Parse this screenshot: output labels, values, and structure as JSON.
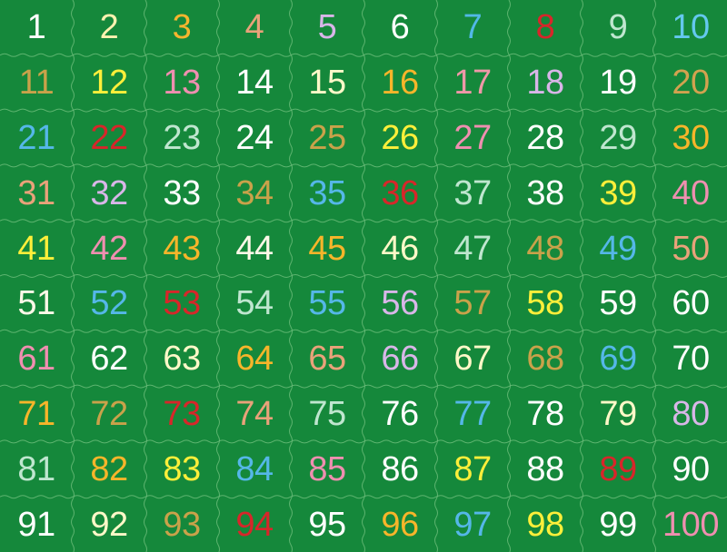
{
  "board": {
    "background": "#15883b",
    "seam_color": "#6fbf7d",
    "cells": [
      {
        "n": "1",
        "color": "#ffffff"
      },
      {
        "n": "2",
        "color": "#fff2b0"
      },
      {
        "n": "3",
        "color": "#f6b52e"
      },
      {
        "n": "4",
        "color": "#e9a27a"
      },
      {
        "n": "5",
        "color": "#d8b6e8"
      },
      {
        "n": "6",
        "color": "#ffffff"
      },
      {
        "n": "7",
        "color": "#52b8e6"
      },
      {
        "n": "8",
        "color": "#d7262a"
      },
      {
        "n": "9",
        "color": "#bfe6cf"
      },
      {
        "n": "10",
        "color": "#64c8ee"
      },
      {
        "n": "11",
        "color": "#c9a24a"
      },
      {
        "n": "12",
        "color": "#ffef3a"
      },
      {
        "n": "13",
        "color": "#ef8fb0"
      },
      {
        "n": "14",
        "color": "#ffffff"
      },
      {
        "n": "15",
        "color": "#fff8c8"
      },
      {
        "n": "16",
        "color": "#f7b52a"
      },
      {
        "n": "17",
        "color": "#ef98a8"
      },
      {
        "n": "18",
        "color": "#d8b6e8"
      },
      {
        "n": "19",
        "color": "#ffffff"
      },
      {
        "n": "20",
        "color": "#d2a24f"
      },
      {
        "n": "21",
        "color": "#55b7e8"
      },
      {
        "n": "22",
        "color": "#d7262a"
      },
      {
        "n": "23",
        "color": "#bfe6cf"
      },
      {
        "n": "24",
        "color": "#ffffff"
      },
      {
        "n": "25",
        "color": "#c9a24a"
      },
      {
        "n": "26",
        "color": "#ffef3a"
      },
      {
        "n": "27",
        "color": "#ef8fb0"
      },
      {
        "n": "28",
        "color": "#ffffff"
      },
      {
        "n": "29",
        "color": "#bfe6cf"
      },
      {
        "n": "30",
        "color": "#f7b52a"
      },
      {
        "n": "31",
        "color": "#e9a27a"
      },
      {
        "n": "32",
        "color": "#d8b6e8"
      },
      {
        "n": "33",
        "color": "#ffffff"
      },
      {
        "n": "34",
        "color": "#c9a24a"
      },
      {
        "n": "35",
        "color": "#55b7e8"
      },
      {
        "n": "36",
        "color": "#d7262a"
      },
      {
        "n": "37",
        "color": "#bfe6cf"
      },
      {
        "n": "38",
        "color": "#ffffff"
      },
      {
        "n": "39",
        "color": "#ffef3a"
      },
      {
        "n": "40",
        "color": "#ef8fb0"
      },
      {
        "n": "41",
        "color": "#ffef3a"
      },
      {
        "n": "42",
        "color": "#ef8fb0"
      },
      {
        "n": "43",
        "color": "#f7b52a"
      },
      {
        "n": "44",
        "color": "#fff8e8"
      },
      {
        "n": "45",
        "color": "#f7b52a"
      },
      {
        "n": "46",
        "color": "#fff8c8"
      },
      {
        "n": "47",
        "color": "#bfe6cf"
      },
      {
        "n": "48",
        "color": "#c9a24a"
      },
      {
        "n": "49",
        "color": "#55b7e8"
      },
      {
        "n": "50",
        "color": "#e9a27a"
      },
      {
        "n": "51",
        "color": "#fff8e8"
      },
      {
        "n": "52",
        "color": "#55b7e8"
      },
      {
        "n": "53",
        "color": "#d7262a"
      },
      {
        "n": "54",
        "color": "#bfe6cf"
      },
      {
        "n": "55",
        "color": "#55b7e8"
      },
      {
        "n": "56",
        "color": "#d8b6e8"
      },
      {
        "n": "57",
        "color": "#c9a24a"
      },
      {
        "n": "58",
        "color": "#ffef3a"
      },
      {
        "n": "59",
        "color": "#ffffff"
      },
      {
        "n": "60",
        "color": "#ffffff"
      },
      {
        "n": "61",
        "color": "#ef8fb0"
      },
      {
        "n": "62",
        "color": "#ffffff"
      },
      {
        "n": "63",
        "color": "#fff8c8"
      },
      {
        "n": "64",
        "color": "#f7b52a"
      },
      {
        "n": "65",
        "color": "#e9a27a"
      },
      {
        "n": "66",
        "color": "#d8b6e8"
      },
      {
        "n": "67",
        "color": "#fff8c8"
      },
      {
        "n": "68",
        "color": "#c9a24a"
      },
      {
        "n": "69",
        "color": "#55b7e8"
      },
      {
        "n": "70",
        "color": "#ffffff"
      },
      {
        "n": "71",
        "color": "#f7b52a"
      },
      {
        "n": "72",
        "color": "#c9a24a"
      },
      {
        "n": "73",
        "color": "#d7262a"
      },
      {
        "n": "74",
        "color": "#e9a27a"
      },
      {
        "n": "75",
        "color": "#bfe6cf"
      },
      {
        "n": "76",
        "color": "#ffffff"
      },
      {
        "n": "77",
        "color": "#55b7e8"
      },
      {
        "n": "78",
        "color": "#ffffff"
      },
      {
        "n": "79",
        "color": "#fff8c8"
      },
      {
        "n": "80",
        "color": "#d8b6e8"
      },
      {
        "n": "81",
        "color": "#bfe6cf"
      },
      {
        "n": "82",
        "color": "#f7b52a"
      },
      {
        "n": "83",
        "color": "#ffef3a"
      },
      {
        "n": "84",
        "color": "#55b7e8"
      },
      {
        "n": "85",
        "color": "#ef8fb0"
      },
      {
        "n": "86",
        "color": "#ffffff"
      },
      {
        "n": "87",
        "color": "#ffef3a"
      },
      {
        "n": "88",
        "color": "#ffffff"
      },
      {
        "n": "89",
        "color": "#d7262a"
      },
      {
        "n": "90",
        "color": "#ffffff"
      },
      {
        "n": "91",
        "color": "#ffffff"
      },
      {
        "n": "92",
        "color": "#fff8c8"
      },
      {
        "n": "93",
        "color": "#c9a24a"
      },
      {
        "n": "94",
        "color": "#d7262a"
      },
      {
        "n": "95",
        "color": "#ffffff"
      },
      {
        "n": "96",
        "color": "#f7b52a"
      },
      {
        "n": "97",
        "color": "#55b7e8"
      },
      {
        "n": "98",
        "color": "#ffef3a"
      },
      {
        "n": "99",
        "color": "#ffffff"
      },
      {
        "n": "100",
        "color": "#ef8fb0"
      }
    ]
  }
}
